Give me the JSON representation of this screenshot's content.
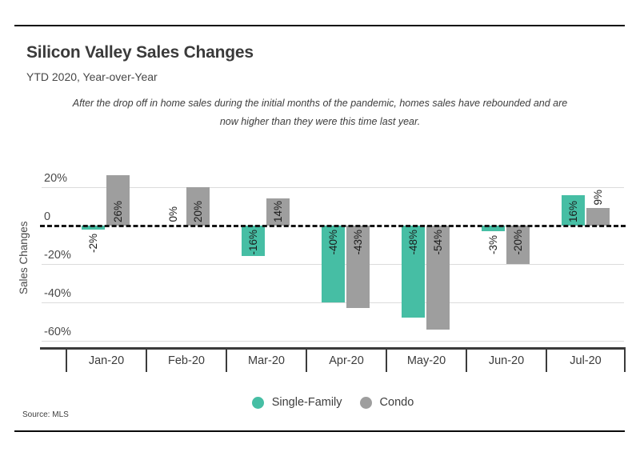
{
  "header": {
    "title": "Silicon Valley Sales Changes",
    "subtitle": "YTD 2020, Year-over-Year",
    "annotation_lines": [
      "After the drop off in home sales during the initial months of the pandemic, homes sales have rebounded and are",
      "now higher than they were this time last year."
    ]
  },
  "footer": {
    "source": "Source: MLS"
  },
  "colors": {
    "single_family": "#46BEA4",
    "condo": "#9E9E9E",
    "zero_line": "#141414",
    "gridline": "#dbdbdb",
    "axis": "#3b3b3b"
  },
  "chart_data": {
    "type": "bar",
    "title": "Silicon Valley Sales Changes",
    "subtitle": "YTD 2020, Year-over-Year",
    "categories": [
      "Jan-20",
      "Feb-20",
      "Mar-20",
      "Apr-20",
      "May-20",
      "Jun-20",
      "Jul-20"
    ],
    "series": [
      {
        "name": "Single-Family",
        "color": "#46BEA4",
        "values": [
          -2,
          0,
          -16,
          -40,
          -48,
          -3,
          16
        ]
      },
      {
        "name": "Condo",
        "color": "#9E9E9E",
        "values": [
          26,
          20,
          14,
          -43,
          -54,
          -20,
          9
        ]
      }
    ],
    "value_suffix": "%",
    "xlabel": "",
    "ylabel": "Sales Changes",
    "yticks": [
      {
        "label": "20%",
        "value": 20
      },
      {
        "label": "0",
        "value": 0
      },
      {
        "label": "-20%",
        "value": -20
      },
      {
        "label": "-40%",
        "value": -40
      },
      {
        "label": "-60%",
        "value": -60
      }
    ],
    "ylim": [
      -64,
      38
    ],
    "grid": "horizontal",
    "zero_line_style": "dashed-black",
    "legend_position": "bottom"
  }
}
